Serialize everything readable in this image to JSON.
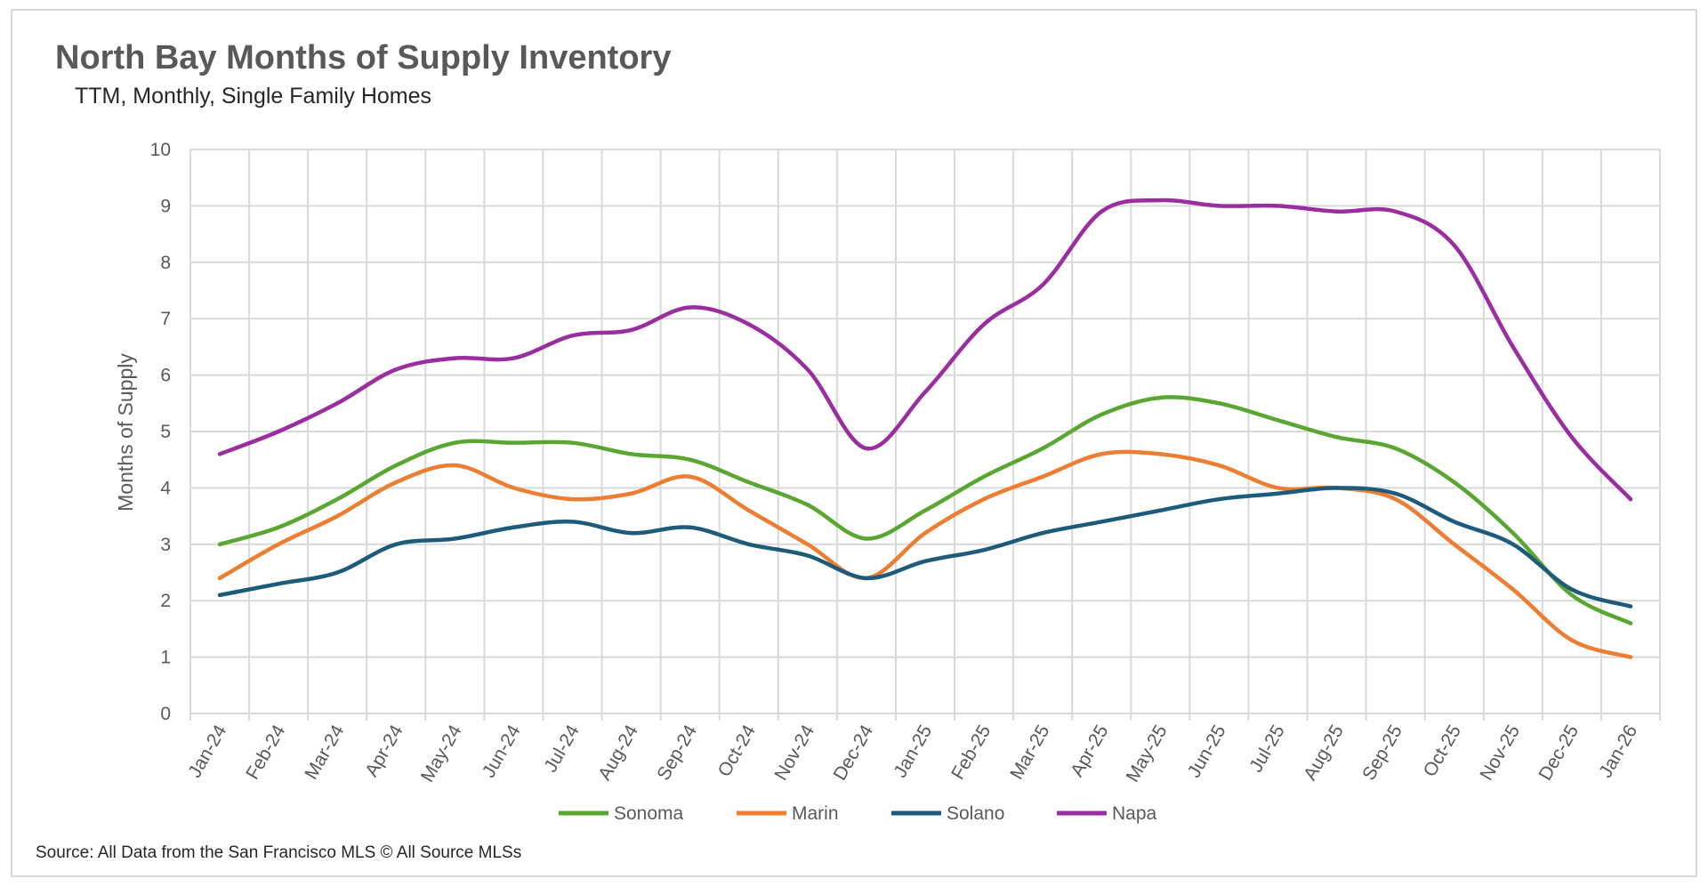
{
  "chart_data": {
    "type": "line",
    "title": "North Bay Months of Supply Inventory",
    "subtitle": "TTM, Monthly, Single Family Homes",
    "xlabel": "",
    "ylabel": "Months of Supply",
    "ylim": [
      0,
      10
    ],
    "yticks": [
      0,
      1,
      2,
      3,
      4,
      5,
      6,
      7,
      8,
      9,
      10
    ],
    "grid": true,
    "legend_position": "bottom",
    "categories": [
      "Jan-24",
      "Feb-24",
      "Mar-24",
      "Apr-24",
      "May-24",
      "Jun-24",
      "Jul-24",
      "Aug-24",
      "Sep-24",
      "Oct-24",
      "Nov-24",
      "Dec-24",
      "Jan-25",
      "Feb-25",
      "Mar-25",
      "Apr-25",
      "May-25",
      "Jun-25",
      "Jul-25",
      "Aug-25",
      "Sep-25",
      "Oct-25",
      "Nov-25",
      "Dec-25",
      "Jan-26"
    ],
    "series": [
      {
        "name": "Sonoma",
        "color": "#59a731",
        "values": [
          3.0,
          3.3,
          3.8,
          4.4,
          4.8,
          4.8,
          4.8,
          4.6,
          4.5,
          4.1,
          3.7,
          3.1,
          3.6,
          4.2,
          4.7,
          5.3,
          5.6,
          5.5,
          5.2,
          4.9,
          4.7,
          4.1,
          3.2,
          2.1,
          1.6
        ]
      },
      {
        "name": "Marin",
        "color": "#ed7d31",
        "values": [
          2.4,
          3.0,
          3.5,
          4.1,
          4.4,
          4.0,
          3.8,
          3.9,
          4.2,
          3.6,
          3.0,
          2.4,
          3.2,
          3.8,
          4.2,
          4.6,
          4.6,
          4.4,
          4.0,
          4.0,
          3.8,
          3.0,
          2.2,
          1.3,
          1.0
        ]
      },
      {
        "name": "Solano",
        "color": "#1d5b7a",
        "values": [
          2.1,
          2.3,
          2.5,
          3.0,
          3.1,
          3.3,
          3.4,
          3.2,
          3.3,
          3.0,
          2.8,
          2.4,
          2.7,
          2.9,
          3.2,
          3.4,
          3.6,
          3.8,
          3.9,
          4.0,
          3.9,
          3.4,
          3.0,
          2.2,
          1.9
        ]
      },
      {
        "name": "Napa",
        "color": "#9a2d9f",
        "values": [
          4.6,
          5.0,
          5.5,
          6.1,
          6.3,
          6.3,
          6.7,
          6.8,
          7.2,
          6.9,
          6.1,
          4.7,
          5.7,
          6.9,
          7.6,
          8.9,
          9.1,
          9.0,
          9.0,
          8.9,
          8.9,
          8.3,
          6.5,
          4.9,
          3.8
        ]
      }
    ],
    "source": "Source: All Data from the San Francisco MLS © All Source MLSs"
  }
}
